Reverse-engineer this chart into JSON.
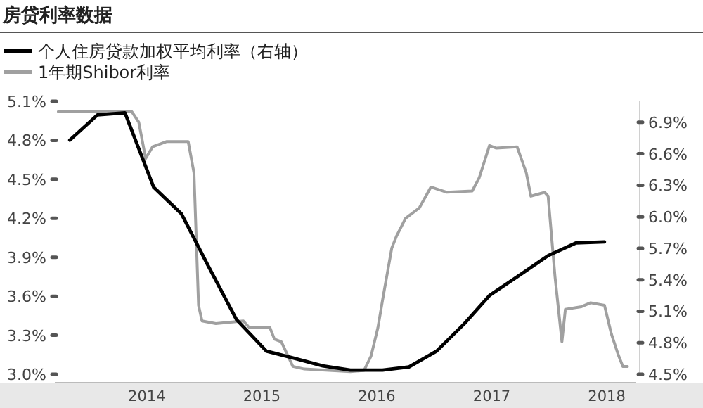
{
  "chart_data": {
    "type": "line",
    "title": "房贷利率数据",
    "xlim": [
      2013.2,
      2018.25
    ],
    "xticks": [
      2014,
      2015,
      2016,
      2017,
      2018
    ],
    "ylim": [
      3.0,
      5.1
    ],
    "yticks": [
      {
        "value": 3.0,
        "label": "3.0%"
      },
      {
        "value": 3.3,
        "label": "3.3%"
      },
      {
        "value": 3.6,
        "label": "3.6%"
      },
      {
        "value": 3.9,
        "label": "3.9%"
      },
      {
        "value": 4.2,
        "label": "4.2%"
      },
      {
        "value": 4.5,
        "label": "4.5%"
      },
      {
        "value": 4.8,
        "label": "4.8%"
      },
      {
        "value": 5.1,
        "label": "5.1%"
      }
    ],
    "y2lim": [
      4.5,
      7.1
    ],
    "y2ticks": [
      {
        "value": 4.5,
        "label": "4.5%"
      },
      {
        "value": 4.8,
        "label": "4.8%"
      },
      {
        "value": 5.1,
        "label": "5.1%"
      },
      {
        "value": 5.4,
        "label": "5.4%"
      },
      {
        "value": 5.7,
        "label": "5.7%"
      },
      {
        "value": 6.0,
        "label": "6.0%"
      },
      {
        "value": 6.3,
        "label": "6.3%"
      },
      {
        "value": 6.6,
        "label": "6.6%"
      },
      {
        "value": 6.9,
        "label": "6.9%"
      }
    ],
    "legend": "top left",
    "grid": false,
    "series": [
      {
        "name": "个人住房贷款加权平均利率（右轴）",
        "color": "#000000",
        "axis": "y2",
        "x": [
          2013.33,
          2013.57,
          2013.81,
          2014.06,
          2014.3,
          2014.54,
          2014.78,
          2015.04,
          2015.29,
          2015.53,
          2015.77,
          2016.05,
          2016.28,
          2016.52,
          2016.76,
          2016.98,
          2017.25,
          2017.49,
          2017.73,
          2017.98
        ],
        "values": [
          6.73,
          6.97,
          6.99,
          6.28,
          6.03,
          5.52,
          5.02,
          4.72,
          4.65,
          4.58,
          4.54,
          4.54,
          4.57,
          4.72,
          4.98,
          5.25,
          5.45,
          5.63,
          5.75,
          5.76
        ]
      },
      {
        "name": "1年期Shibor利率",
        "color": "#a0a0a0",
        "x": [
          2013.23,
          2013.87,
          2013.93,
          2013.99,
          2014.05,
          2014.17,
          2014.36,
          2014.41,
          2014.45,
          2014.48,
          2014.6,
          2014.84,
          2014.89,
          2015.07,
          2015.11,
          2015.17,
          2015.27,
          2015.37,
          2015.77,
          2015.89,
          2015.95,
          2016.01,
          2016.05,
          2016.13,
          2016.17,
          2016.25,
          2016.37,
          2016.47,
          2016.61,
          2016.83,
          2016.89,
          2016.98,
          2017.04,
          2017.22,
          2017.3,
          2017.34,
          2017.46,
          2017.49,
          2017.55,
          2017.61,
          2017.64,
          2017.78,
          2017.86,
          2017.98,
          2018.04,
          2018.1,
          2018.14,
          2018.18
        ],
        "values": [
          5.02,
          5.02,
          4.94,
          4.66,
          4.75,
          4.79,
          4.79,
          4.55,
          3.53,
          3.41,
          3.39,
          3.41,
          3.36,
          3.36,
          3.27,
          3.25,
          3.06,
          3.04,
          3.02,
          3.03,
          3.14,
          3.36,
          3.57,
          3.97,
          4.06,
          4.2,
          4.28,
          4.44,
          4.4,
          4.41,
          4.51,
          4.76,
          4.74,
          4.75,
          4.55,
          4.37,
          4.4,
          4.37,
          3.75,
          3.25,
          3.5,
          3.52,
          3.55,
          3.53,
          3.31,
          3.15,
          3.06,
          3.06
        ]
      }
    ]
  }
}
